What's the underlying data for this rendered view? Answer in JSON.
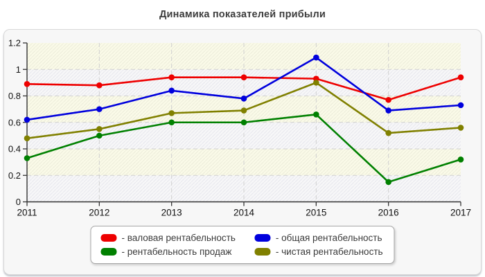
{
  "title": "Динамика показателей прибыли",
  "chart_data": {
    "type": "line",
    "title": "Динамика показателей прибыли",
    "x": [
      "2011",
      "2012",
      "2013",
      "2014",
      "2015",
      "2016",
      "2017"
    ],
    "xlabel": "",
    "ylabel": "",
    "ylim": [
      0,
      1.2
    ],
    "yticks": [
      "0",
      "0.2",
      "0.4",
      "0.6",
      "0.8",
      "1",
      "1.2"
    ],
    "grid": "dashed horizontal and vertical, light gray",
    "plot_background": "alternating cream/gray hatched horizontal bands per 0.2 interval",
    "legend_position": "bottom-center",
    "marker": "circle",
    "series": [
      {
        "name": "валовая рентабельность",
        "color": "#ee0000",
        "values": [
          0.89,
          0.88,
          0.94,
          0.94,
          0.93,
          0.77,
          0.94
        ]
      },
      {
        "name": "общая рентабельность",
        "color": "#0000dd",
        "values": [
          0.62,
          0.7,
          0.84,
          0.78,
          1.09,
          0.69,
          0.73
        ]
      },
      {
        "name": "рентабельность продаж",
        "color": "#008000",
        "values": [
          0.33,
          0.5,
          0.6,
          0.6,
          0.66,
          0.15,
          0.32
        ]
      },
      {
        "name": "чистая рентабельность",
        "color": "#808000",
        "values": [
          0.48,
          0.55,
          0.67,
          0.69,
          0.9,
          0.52,
          0.56
        ]
      }
    ]
  },
  "legend": {
    "items": [
      {
        "label": "- валовая рентабельность",
        "color": "#ee0000"
      },
      {
        "label": "- общая рентабельность",
        "color": "#0000dd"
      },
      {
        "label": "- рентабельность продаж",
        "color": "#008000"
      },
      {
        "label": "- чистая рентабельность",
        "color": "#808000"
      }
    ]
  },
  "style_colors": {
    "card_background": "#f7f7f7",
    "band_cream": "#fafae8",
    "band_gray": "#f7f7f8",
    "gridline": "#d0d0d0",
    "axis": "#333333",
    "title_text": "#3d3d3d",
    "legend_text": "#3a3a3a"
  }
}
